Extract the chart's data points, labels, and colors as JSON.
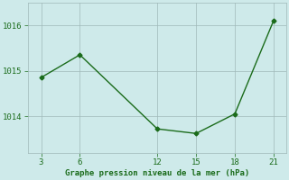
{
  "x": [
    3,
    6,
    12,
    15,
    18,
    21
  ],
  "y": [
    1014.85,
    1015.35,
    1013.72,
    1013.62,
    1014.05,
    1016.1
  ],
  "line_color": "#1a6b1a",
  "marker": "D",
  "marker_size": 2.5,
  "bg_color": "#ceeaea",
  "grid_color": "#a0b8b8",
  "xlabel": "Graphe pression niveau de la mer (hPa)",
  "xlabel_color": "#1a6b1a",
  "xticks": [
    3,
    6,
    12,
    15,
    18,
    21
  ],
  "yticks": [
    1014,
    1015,
    1016
  ],
  "ylim": [
    1013.2,
    1016.5
  ],
  "xlim": [
    2.0,
    22.0
  ],
  "tick_color": "#1a6b1a",
  "label_fontsize": 6.5,
  "tick_fontsize": 6.5
}
